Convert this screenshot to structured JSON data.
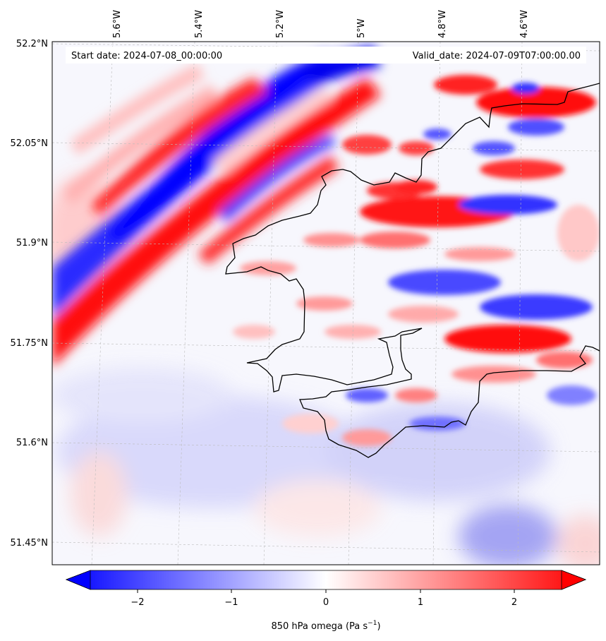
{
  "map": {
    "start_date": "Start date: 2024-07-08_00:00:00",
    "valid_date": "Valid_date: 2024-07-09T07:00:00.00",
    "lon_labels": [
      "5.6°W",
      "5.4°W",
      "5.2°W",
      "5°W",
      "4.8°W",
      "4.6°W"
    ],
    "lat_labels": [
      "52.2°N",
      "52.05°N",
      "51.9°N",
      "51.75°N",
      "51.6°N",
      "51.45°N"
    ],
    "colormap": {
      "negative": "#0000ff",
      "neutral": "#ffffff",
      "positive": "#ff0000"
    },
    "coastline_color": "#000000"
  },
  "colorbar": {
    "ticks": [
      "−2",
      "−1",
      "0",
      "1",
      "2"
    ],
    "label": "850 hPa omega (Pa s",
    "label_exp": "−1",
    "label_end": ")"
  }
}
